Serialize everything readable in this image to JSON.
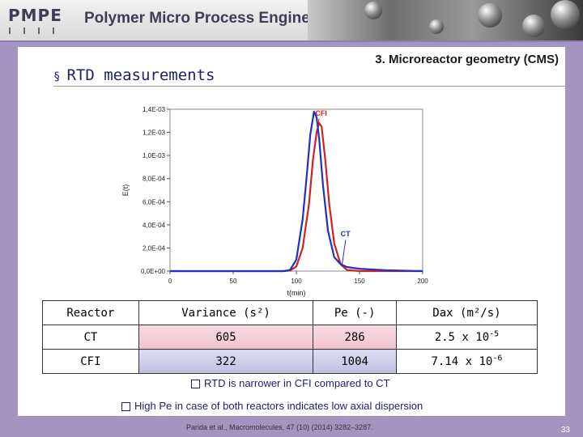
{
  "header": {
    "logo_text": "PMPE",
    "title": "Polymer Micro Process Engineering"
  },
  "slide": {
    "heading": "3. Microreactor geometry (CMS)",
    "section_bullet": "§",
    "section_title": "RTD measurements"
  },
  "chart_data": {
    "type": "line",
    "xlabel": "t(min)",
    "ylabel": "E(t)",
    "xlim": [
      0,
      200
    ],
    "ylim": [
      0,
      0.0014
    ],
    "x_ticks": [
      "0",
      "50",
      "100",
      "150",
      "200"
    ],
    "y_ticks": [
      "0,0E+00",
      "2,0E-04",
      "4,0E-04",
      "6,0E-04",
      "8,0E-04",
      "1,0E-03",
      "1,2E-03",
      "1,4E-03"
    ],
    "annotations": [
      "CFI",
      "CT"
    ],
    "series": [
      {
        "name": "CFI",
        "color": "#d32020",
        "x": [
          0,
          90,
          95,
          100,
          105,
          110,
          113,
          116,
          118,
          120,
          123,
          126,
          130,
          135,
          140,
          150,
          200
        ],
        "y": [
          0,
          0,
          5e-06,
          4e-05,
          0.0002,
          0.00058,
          0.00095,
          0.0012,
          0.00128,
          0.00125,
          0.00095,
          0.00058,
          0.00024,
          6e-05,
          1e-05,
          0,
          0
        ]
      },
      {
        "name": "CT",
        "color": "#2030c0",
        "x": [
          0,
          90,
          95,
          100,
          105,
          108,
          111,
          114,
          116,
          118,
          121,
          125,
          130,
          135,
          140,
          150,
          170,
          200
        ],
        "y": [
          0,
          0,
          1e-05,
          0.0001,
          0.00045,
          0.0008,
          0.00118,
          0.00138,
          0.00133,
          0.00115,
          0.00075,
          0.00035,
          0.00012,
          6e-05,
          3.5e-05,
          2e-05,
          8e-06,
          0
        ]
      }
    ]
  },
  "table": {
    "headers": [
      "Reactor",
      "Variance (s²)",
      "Pe (-)",
      "Dax (m²/s)"
    ],
    "rows": [
      [
        "CT",
        "605",
        "286",
        "2.5 x 10-5"
      ],
      [
        "CFI",
        "322",
        "1004",
        "7.14 x 10-6"
      ]
    ]
  },
  "notes": [
    "RTD is narrower in CFI compared to CT",
    "High Pe in case of both reactors indicates low axial dispersion"
  ],
  "citation": "Parida et al., Macromolecules, 47 (10) (2014) 3282–3287.",
  "page_number": "33"
}
